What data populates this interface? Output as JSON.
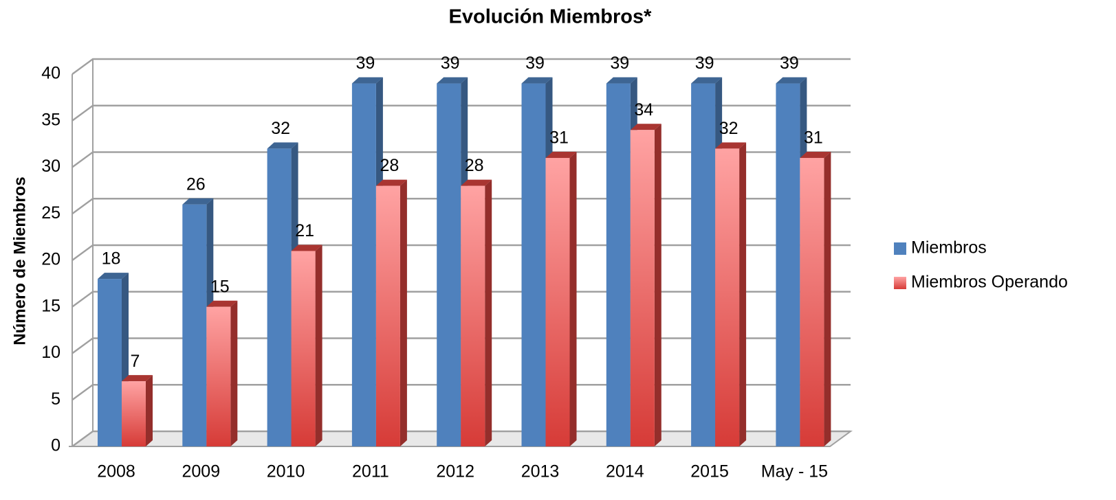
{
  "chart_data": {
    "type": "bar3d",
    "title": "Evolución Miembros*",
    "y_label": "Número de Miembros",
    "categories": [
      "2008",
      "2009",
      "2010",
      "2011",
      "2012",
      "2013",
      "2014",
      "2015",
      "May - 15"
    ],
    "series": [
      {
        "name": "Miembros",
        "color": "#4f81bd",
        "values": [
          18,
          26,
          32,
          39,
          39,
          39,
          39,
          39,
          39
        ]
      },
      {
        "name": "Miembros Operando",
        "color": "#d9443f",
        "values": [
          7,
          15,
          21,
          28,
          28,
          31,
          34,
          32,
          31
        ]
      }
    ],
    "ylim": [
      0,
      40
    ],
    "yticks": [
      0,
      5,
      10,
      15,
      20,
      25,
      30,
      35,
      40
    ],
    "grid": true,
    "legend": "right"
  }
}
